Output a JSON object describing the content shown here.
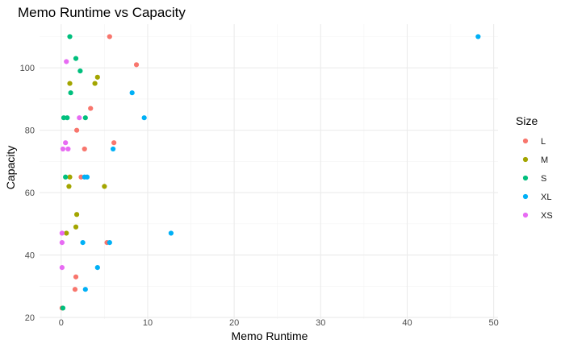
{
  "chart_data": {
    "type": "scatter",
    "title": "Memo Runtime vs Capacity",
    "xlabel": "Memo Runtime",
    "ylabel": "Capacity",
    "xlim": [
      -2.5,
      50.5
    ],
    "ylim": [
      19.5,
      114
    ],
    "x_ticks": [
      0,
      10,
      20,
      30,
      40,
      50
    ],
    "y_ticks": [
      20,
      40,
      60,
      80,
      100
    ],
    "grid": true,
    "legend": {
      "title": "Size",
      "position": "right"
    },
    "series": [
      {
        "name": "L",
        "color": "#F8766D",
        "points": [
          {
            "x": 5.6,
            "y": 110
          },
          {
            "x": 8.7,
            "y": 101
          },
          {
            "x": 3.4,
            "y": 87
          },
          {
            "x": 1.8,
            "y": 80
          },
          {
            "x": 6.1,
            "y": 76
          },
          {
            "x": 2.7,
            "y": 74
          },
          {
            "x": 2.3,
            "y": 65
          },
          {
            "x": 5.3,
            "y": 44
          },
          {
            "x": 1.7,
            "y": 33
          },
          {
            "x": 1.6,
            "y": 29
          },
          {
            "x": 0.1,
            "y": 23
          }
        ]
      },
      {
        "name": "M",
        "color": "#A3A500",
        "points": [
          {
            "x": 4.2,
            "y": 97
          },
          {
            "x": 1.0,
            "y": 95
          },
          {
            "x": 3.9,
            "y": 95
          },
          {
            "x": 1.0,
            "y": 65
          },
          {
            "x": 0.9,
            "y": 62
          },
          {
            "x": 5.0,
            "y": 62
          },
          {
            "x": 1.8,
            "y": 53
          },
          {
            "x": 1.7,
            "y": 49
          },
          {
            "x": 0.6,
            "y": 47
          }
        ]
      },
      {
        "name": "S",
        "color": "#00BF7D",
        "points": [
          {
            "x": 1.0,
            "y": 110
          },
          {
            "x": 1.7,
            "y": 103
          },
          {
            "x": 2.2,
            "y": 99
          },
          {
            "x": 1.1,
            "y": 92
          },
          {
            "x": 0.3,
            "y": 84
          },
          {
            "x": 0.7,
            "y": 84
          },
          {
            "x": 2.8,
            "y": 84
          },
          {
            "x": 0.5,
            "y": 65
          },
          {
            "x": 0.2,
            "y": 23
          }
        ]
      },
      {
        "name": "XL",
        "color": "#00B0F6",
        "points": [
          {
            "x": 48.2,
            "y": 110
          },
          {
            "x": 8.2,
            "y": 92
          },
          {
            "x": 9.6,
            "y": 84
          },
          {
            "x": 6.0,
            "y": 74
          },
          {
            "x": 2.7,
            "y": 65
          },
          {
            "x": 3.0,
            "y": 65
          },
          {
            "x": 12.7,
            "y": 47
          },
          {
            "x": 2.5,
            "y": 44
          },
          {
            "x": 5.6,
            "y": 44
          },
          {
            "x": 4.2,
            "y": 36
          },
          {
            "x": 2.8,
            "y": 29
          }
        ]
      },
      {
        "name": "XS",
        "color": "#E76BF3",
        "points": [
          {
            "x": 0.6,
            "y": 102
          },
          {
            "x": 2.1,
            "y": 84
          },
          {
            "x": 0.5,
            "y": 76
          },
          {
            "x": 0.2,
            "y": 74
          },
          {
            "x": 0.8,
            "y": 74
          },
          {
            "x": 0.1,
            "y": 47
          },
          {
            "x": 0.1,
            "y": 44
          },
          {
            "x": 0.1,
            "y": 36
          }
        ]
      }
    ]
  }
}
